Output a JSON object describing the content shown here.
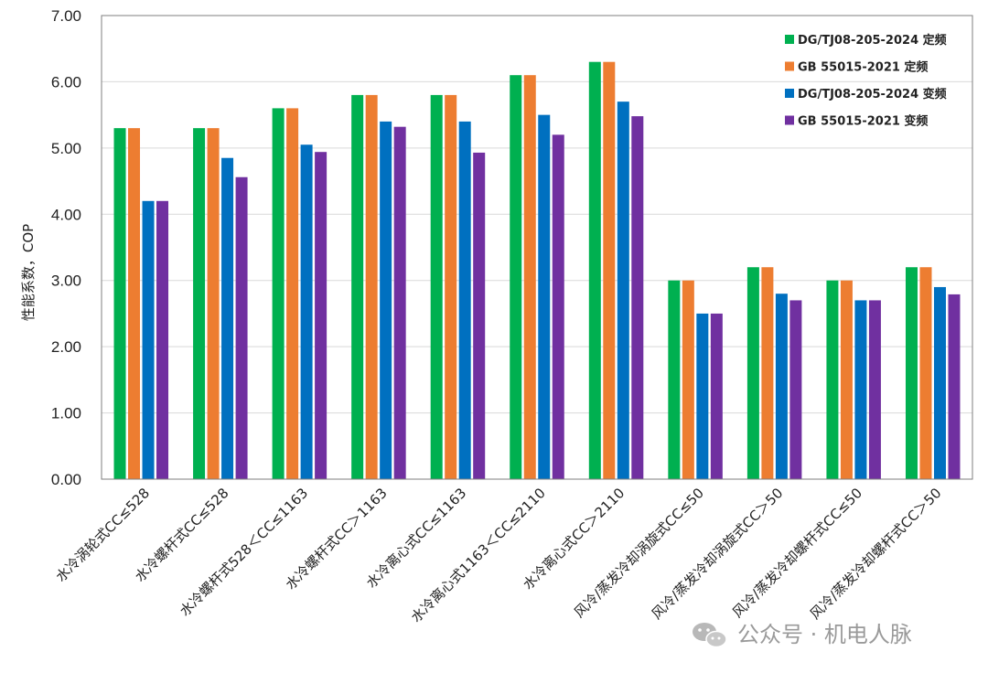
{
  "chart_data": {
    "type": "bar",
    "title": "",
    "xlabel": "",
    "ylabel": "性能系数，COP",
    "ylim": [
      0,
      7
    ],
    "ytick_step": 1,
    "ytick_labels": [
      "0.00",
      "1.00",
      "2.00",
      "3.00",
      "4.00",
      "5.00",
      "6.00",
      "7.00"
    ],
    "grid": true,
    "legend_position": "top-right",
    "categories": [
      "水冷涡轮式CC≤528",
      "水冷螺杆式CC≤528",
      "水冷螺杆式528＜CC≤1163",
      "水冷螺杆式CC＞1163",
      "水冷离心式CC≤1163",
      "水冷离心式1163＜CC≤2110",
      "水冷离心式CC＞2110",
      "风冷/蒸发冷却涡旋式CC≤50",
      "风冷/蒸发冷却涡旋式CC＞50",
      "风冷/蒸发冷却螺杆式CC≤50",
      "风冷/蒸发冷却螺杆式CC＞50"
    ],
    "series": [
      {
        "name": "DG/TJ08-205-2024 定频",
        "color": "#00b050",
        "values": [
          5.3,
          5.3,
          5.6,
          5.8,
          5.8,
          6.1,
          6.3,
          3.0,
          3.2,
          3.0,
          3.2
        ]
      },
      {
        "name": "GB 55015-2021 定频",
        "color": "#ed7d31",
        "values": [
          5.3,
          5.3,
          5.6,
          5.8,
          5.8,
          6.1,
          6.3,
          3.0,
          3.2,
          3.0,
          3.2
        ]
      },
      {
        "name": "DG/TJ08-205-2024 变频",
        "color": "#0070c0",
        "values": [
          4.2,
          4.85,
          5.05,
          5.4,
          5.4,
          5.5,
          5.7,
          2.5,
          2.8,
          2.7,
          2.9
        ]
      },
      {
        "name": "GB 55015-2021 变频",
        "color": "#7030a0",
        "values": [
          4.2,
          4.56,
          4.94,
          5.32,
          4.93,
          5.2,
          5.48,
          2.5,
          2.7,
          2.7,
          2.79
        ]
      }
    ]
  },
  "watermark": {
    "text": "公众号 · 机电人脉",
    "icon": "wechat-icon"
  }
}
